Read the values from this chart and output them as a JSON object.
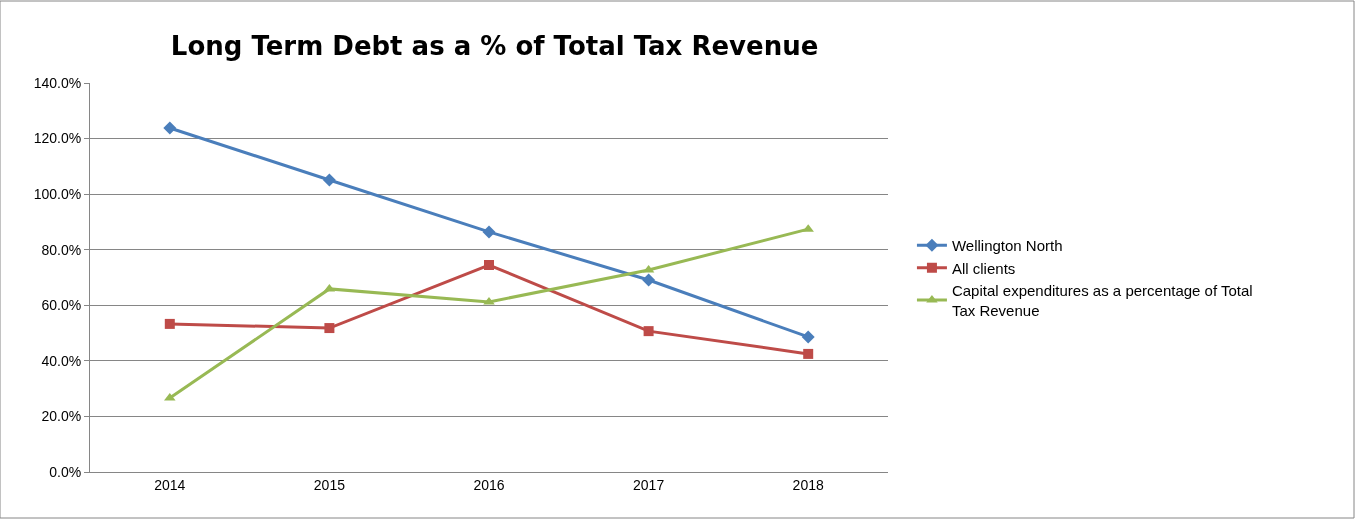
{
  "chart_data": {
    "type": "line",
    "title": "Long Term Debt as a % of Total Tax Revenue",
    "categories": [
      "2014",
      "2015",
      "2016",
      "2017",
      "2018"
    ],
    "series": [
      {
        "name": "Wellington North",
        "color": "#4a7ebb",
        "marker": "diamond",
        "values": [
          123.8,
          105.1,
          86.4,
          69.1,
          48.6
        ]
      },
      {
        "name": "All clients",
        "color": "#be4b48",
        "marker": "square",
        "values": [
          53.3,
          51.8,
          74.5,
          50.7,
          42.5
        ]
      },
      {
        "name": "Capital expenditures as a percentage of Total Tax Revenue",
        "color": "#98b954",
        "marker": "triangle",
        "values": [
          26.6,
          65.9,
          61.2,
          72.7,
          87.4
        ]
      }
    ],
    "ylim": [
      0,
      140
    ],
    "yticks": [
      {
        "value": 0,
        "label": "0.0%"
      },
      {
        "value": 20,
        "label": "20.0%"
      },
      {
        "value": 40,
        "label": "40.0%"
      },
      {
        "value": 60,
        "label": "60.0%"
      },
      {
        "value": 80,
        "label": "80.0%"
      },
      {
        "value": 100,
        "label": "100.0%"
      },
      {
        "value": 120,
        "label": "120.0%"
      },
      {
        "value": 140,
        "label": "140.0%"
      }
    ],
    "grid": "y",
    "legend": "right",
    "line_style": "solid"
  }
}
